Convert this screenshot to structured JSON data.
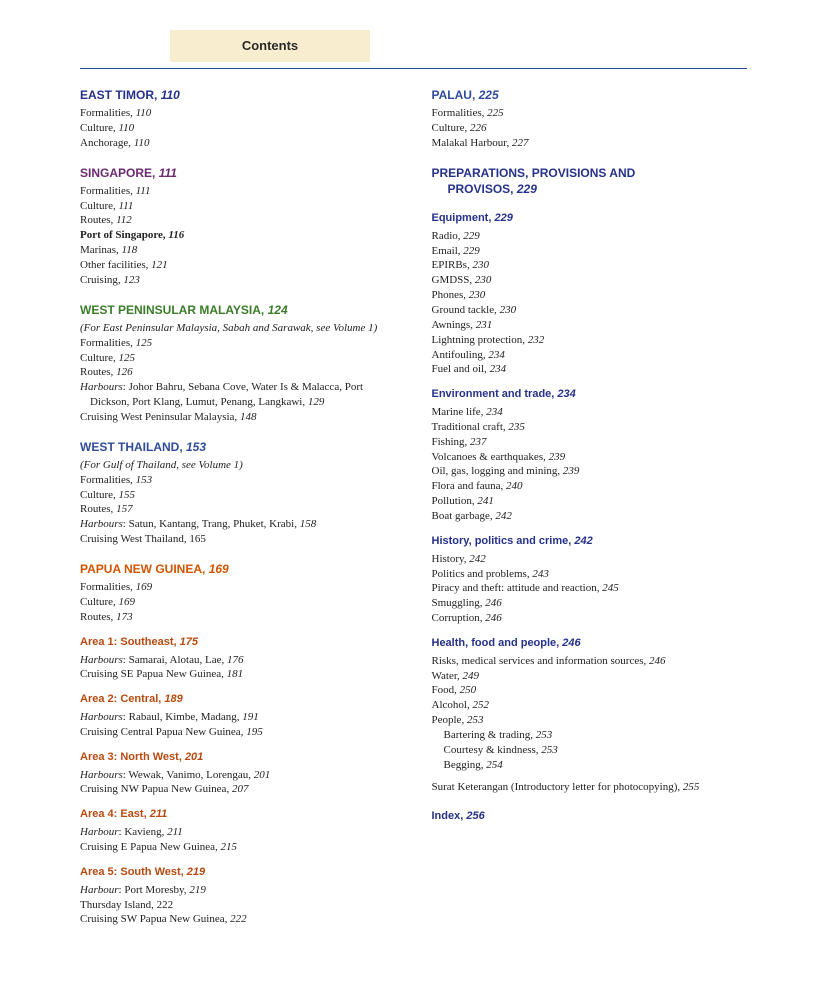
{
  "header": {
    "title": "Contents"
  },
  "colors": {
    "dark_blue": "#25318a",
    "purple": "#6b2a70",
    "green": "#3a7c2a",
    "orange": "#d35400",
    "sub_blue": "#2f4c9a",
    "sub_orange": "#b84a10"
  },
  "left": {
    "east_timor": {
      "title": "EAST TIMOR,",
      "page": "110",
      "items": [
        {
          "text": "Formalities,",
          "page": "110"
        },
        {
          "text": "Culture,",
          "page": "110"
        },
        {
          "text": "Anchorage,",
          "page": "110"
        }
      ]
    },
    "singapore": {
      "title": "SINGAPORE,",
      "page": "111",
      "items": [
        {
          "text": "Formalities,",
          "page": "111"
        },
        {
          "text": "Culture,",
          "page": "111"
        },
        {
          "text": "Routes,",
          "page": "112"
        },
        {
          "text": "Port of Singapore,",
          "page": "116",
          "bold": true
        },
        {
          "text": "Marinas,",
          "page": "118"
        },
        {
          "text": "Other facilities,",
          "page": "121"
        },
        {
          "text": "Cruising,",
          "page": "123"
        }
      ]
    },
    "malaysia": {
      "title": "WEST PENINSULAR MALAYSIA,",
      "page": "124",
      "note": "(For East Peninsular Malaysia, Sabah and Sarawak, see Volume 1)",
      "items": [
        {
          "text": "Formalities,",
          "page": "125"
        },
        {
          "text": "Culture,",
          "page": "125"
        },
        {
          "text": "Routes,",
          "page": "126"
        }
      ],
      "harbours_label": "Harbours",
      "harbours_text": ": Johor Bahru, Sebana Cove, Water Is & Malacca, Port Dickson, Port Klang, Lumut, Penang, Langkawi,",
      "harbours_page": "129",
      "cruising": {
        "text": "Cruising West Peninsular Malaysia,",
        "page": "148"
      }
    },
    "thailand": {
      "title": "WEST THAILAND,",
      "page": "153",
      "note": "(For Gulf of Thailand, see Volume 1)",
      "items": [
        {
          "text": "Formalities,",
          "page": "153"
        },
        {
          "text": "Culture,",
          "page": "155"
        },
        {
          "text": "Routes,",
          "page": "157"
        }
      ],
      "harbours_label": "Harbours",
      "harbours_text": ": Satun, Kantang, Trang, Phuket, Krabi,",
      "harbours_page": "158",
      "cruising": {
        "text": "Cruising West Thailand, 165"
      }
    },
    "png": {
      "title": "PAPUA NEW GUINEA,",
      "page": "169",
      "items": [
        {
          "text": "Formalities,",
          "page": "169"
        },
        {
          "text": "Culture,",
          "page": "169"
        },
        {
          "text": "Routes,",
          "page": "173"
        }
      ],
      "areas": [
        {
          "head": "Area 1: Southeast,",
          "page": "175",
          "lines": [
            {
              "harbour_label": "Harbours",
              "rest": ": Samarai, Alotau, Lae,",
              "page": "176"
            },
            {
              "text": "Cruising SE Papua New Guinea,",
              "page": "181"
            }
          ]
        },
        {
          "head": "Area 2: Central,",
          "page": "189",
          "lines": [
            {
              "harbour_label": "Harbours",
              "rest": ": Rabaul, Kimbe, Madang,",
              "page": "191"
            },
            {
              "text": "Cruising Central Papua New Guinea,",
              "page": "195"
            }
          ]
        },
        {
          "head": "Area 3: North West,",
          "page": "201",
          "lines": [
            {
              "harbour_label": "Harbours",
              "rest": ": Wewak, Vanimo, Lorengau,",
              "page": "201"
            },
            {
              "text": "Cruising NW Papua New Guinea,",
              "page": "207"
            }
          ]
        },
        {
          "head": "Area 4: East,",
          "page": "211",
          "lines": [
            {
              "harbour_label": "Harbour",
              "rest": ": Kavieng,",
              "page": "211"
            },
            {
              "text": "Cruising E Papua New Guinea,",
              "page": "215"
            }
          ]
        },
        {
          "head": "Area 5: South West,",
          "page": "219",
          "lines": [
            {
              "harbour_label": "Harbour",
              "rest": ": Port Moresby,",
              "page": "219"
            },
            {
              "text": "Thursday Island, 222"
            },
            {
              "text": "Cruising SW Papua New Guinea,",
              "page": "222"
            }
          ]
        }
      ]
    }
  },
  "right": {
    "palau": {
      "title": "PALAU,",
      "page": "225",
      "items": [
        {
          "text": "Formalities,",
          "page": "225"
        },
        {
          "text": "Culture,",
          "page": "226"
        },
        {
          "text": "Malakal Harbour,",
          "page": "227"
        }
      ]
    },
    "preparations": {
      "title_line1": "PREPARATIONS, PROVISIONS AND",
      "title_line2": "PROVISOS,",
      "page": "229",
      "sections": [
        {
          "head": "Equipment,",
          "page": "229",
          "items": [
            {
              "text": "Radio,",
              "page": "229"
            },
            {
              "text": "Email,",
              "page": "229"
            },
            {
              "text": "EPIRBs,",
              "page": "230"
            },
            {
              "text": "GMDSS,",
              "page": "230"
            },
            {
              "text": "Phones,",
              "page": "230"
            },
            {
              "text": "Ground tackle,",
              "page": "230"
            },
            {
              "text": "Awnings,",
              "page": "231"
            },
            {
              "text": "Lightning protection,",
              "page": "232"
            },
            {
              "text": "Antifouling,",
              "page": "234"
            },
            {
              "text": "Fuel and oil,",
              "page": "234"
            }
          ]
        },
        {
          "head": "Environment and trade,",
          "page": "234",
          "items": [
            {
              "text": "Marine life,",
              "page": "234"
            },
            {
              "text": "Traditional craft,",
              "page": "235"
            },
            {
              "text": "Fishing,",
              "page": "237"
            },
            {
              "text": "Volcanoes & earthquakes,",
              "page": "239"
            },
            {
              "text": "Oil, gas, logging and mining,",
              "page": "239"
            },
            {
              "text": "Flora and fauna,",
              "page": "240"
            },
            {
              "text": "Pollution,",
              "page": "241"
            },
            {
              "text": "Boat garbage,",
              "page": "242"
            }
          ]
        },
        {
          "head": "History, politics and crime,",
          "page": "242",
          "items": [
            {
              "text": "History,",
              "page": "242"
            },
            {
              "text": "Politics and problems,",
              "page": "243"
            },
            {
              "text": "Piracy and theft: attitude and reaction,",
              "page": "245"
            },
            {
              "text": "Smuggling,",
              "page": "246"
            },
            {
              "text": "Corruption,",
              "page": "246"
            }
          ]
        },
        {
          "head": "Health, food and people,",
          "page": "246",
          "items": [
            {
              "text": "Risks, medical services and information sources,",
              "page": "246"
            },
            {
              "text": "Water,",
              "page": "249"
            },
            {
              "text": "Food,",
              "page": "250"
            },
            {
              "text": "Alcohol,",
              "page": "252"
            },
            {
              "text": "People,",
              "page": "253"
            }
          ],
          "sub_items": [
            {
              "text": "Bartering & trading,",
              "page": "253"
            },
            {
              "text": "Courtesy & kindness,",
              "page": "253"
            },
            {
              "text": "Begging,",
              "page": "254"
            }
          ],
          "tail": {
            "text": "Surat Keterangan (Introductory letter for photocopying),",
            "page": "255"
          }
        }
      ],
      "index": {
        "text": "Index,",
        "page": "256"
      }
    }
  }
}
